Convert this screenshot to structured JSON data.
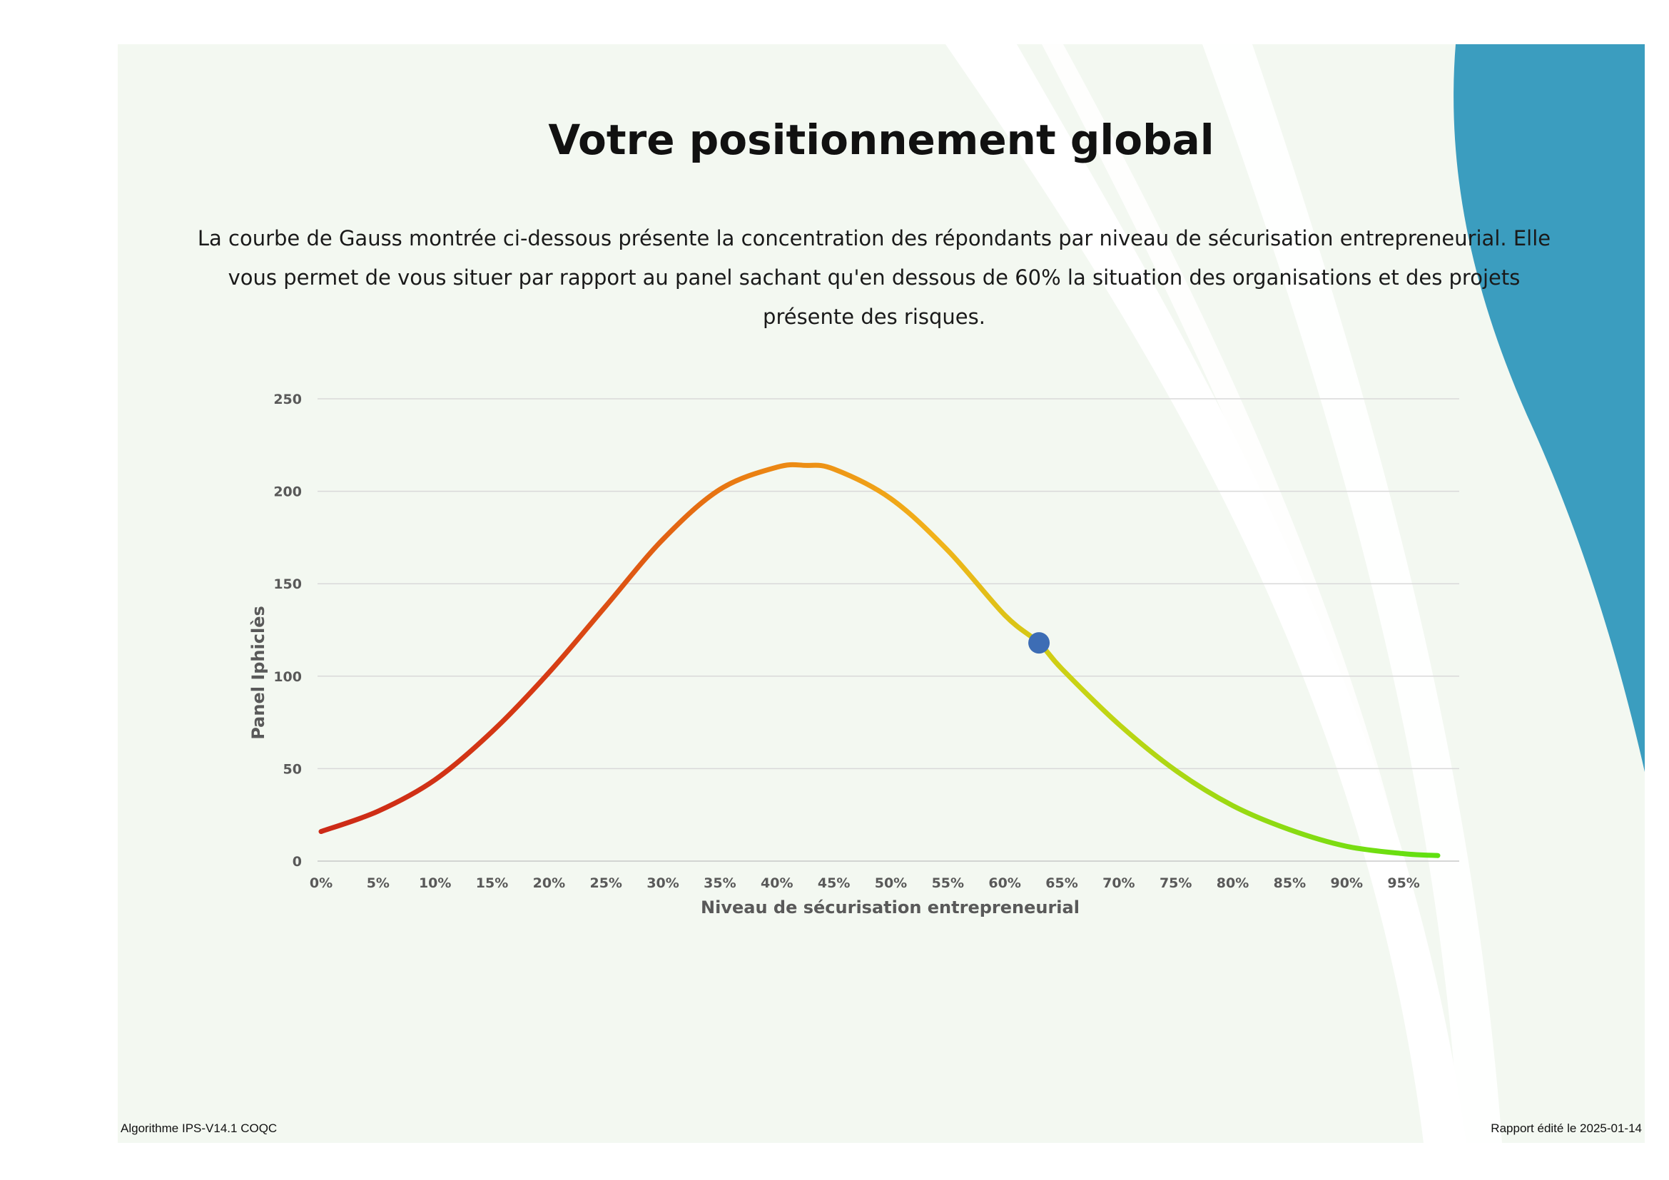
{
  "title": "Votre positionnement global",
  "intro": "La courbe de Gauss montrée ci-dessous présente la concentration des répondants par niveau de sécurisation entrepreneurial. Elle vous permet de vous situer par rapport au panel  sachant qu'en dessous de 60% la situation des organisations et des projets présente des risques.",
  "footer": {
    "left": "Algorithme IPS-V14.1 COQC",
    "right": "Rapport édité le 2025-01-14"
  },
  "colors": {
    "background": "#f3f8f1",
    "accent_blue": "#3b9dbf",
    "curve_low": "#cc2a17",
    "curve_mid": "#f0a010",
    "curve_high": "#5ee010",
    "marker": "#3d6db5",
    "grid": "#d9d9d9"
  },
  "chart_data": {
    "type": "line",
    "xlabel": "Niveau de sécurisation entrepreneurial",
    "ylabel": "Panel Iphiclès",
    "xlim": [
      0,
      98
    ],
    "ylim": [
      0,
      250
    ],
    "x_ticks": [
      "0%",
      "5%",
      "10%",
      "15%",
      "20%",
      "25%",
      "30%",
      "35%",
      "40%",
      "45%",
      "50%",
      "55%",
      "60%",
      "65%",
      "70%",
      "75%",
      "80%",
      "85%",
      "90%",
      "95%"
    ],
    "y_ticks": [
      0,
      50,
      100,
      150,
      200,
      250
    ],
    "grid": true,
    "series": [
      {
        "x": [
          0,
          5,
          10,
          15,
          20,
          25,
          30,
          35,
          40,
          42.5,
          45,
          50,
          55,
          60,
          63,
          65,
          70,
          75,
          80,
          85,
          90,
          95,
          98
        ],
        "values": [
          16,
          27,
          44,
          70,
          102,
          138,
          174,
          201,
          213,
          214,
          212,
          196,
          168,
          133,
          118,
          104,
          74,
          49,
          30,
          17,
          8,
          4,
          3
        ]
      }
    ],
    "marker": {
      "x": 63,
      "y": 118
    }
  }
}
